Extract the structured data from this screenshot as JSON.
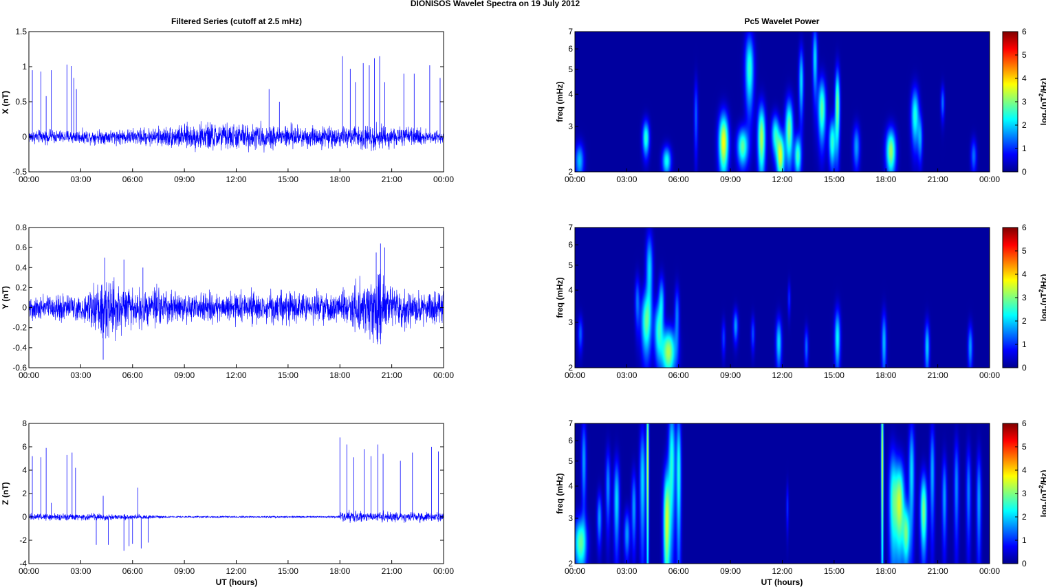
{
  "figure": {
    "title": "DIONISOS Wavelet Spectra on 19 July      2012"
  },
  "colors": {
    "series_line": "#0000ff",
    "spectrogram_background": "#00008f",
    "colormap": [
      "#00008f",
      "#0000ff",
      "#007fff",
      "#00ffff",
      "#7fff7f",
      "#ffff00",
      "#ff7f00",
      "#ff0000",
      "#7f0000"
    ]
  },
  "chart_data": [
    {
      "type": "line",
      "panel": "filtered-x",
      "title": "Filtered Series (cutoff at 2.5 mHz)",
      "xlabel": "",
      "ylabel": "X (nT)",
      "xlim": [
        "00:00",
        "00:00"
      ],
      "xticks": [
        "00:00",
        "03:00",
        "06:00",
        "09:00",
        "12:00",
        "15:00",
        "18:00",
        "21:00",
        "00:00"
      ],
      "ylim": [
        -0.5,
        1.5
      ],
      "yticks": [
        "-0.5",
        "0",
        "0.5",
        "1",
        "1.5"
      ],
      "noise_amplitude": [
        {
          "t": 0,
          "amp": 0.1
        },
        {
          "t": 3,
          "amp": 0.1
        },
        {
          "t": 6,
          "amp": 0.12
        },
        {
          "t": 9,
          "amp": 0.18
        },
        {
          "t": 10.5,
          "amp": 0.22
        },
        {
          "t": 12,
          "amp": 0.2
        },
        {
          "t": 15,
          "amp": 0.18
        },
        {
          "t": 18,
          "amp": 0.15
        },
        {
          "t": 20,
          "amp": 0.2
        },
        {
          "t": 21,
          "amp": 0.15
        },
        {
          "t": 24,
          "amp": 0.1
        }
      ],
      "spikes": [
        {
          "t": 0.2,
          "y": 0.95
        },
        {
          "t": 0.7,
          "y": 0.93
        },
        {
          "t": 1.0,
          "y": 0.58
        },
        {
          "t": 1.3,
          "y": 0.95
        },
        {
          "t": 2.2,
          "y": 1.03
        },
        {
          "t": 2.45,
          "y": 1.01
        },
        {
          "t": 2.6,
          "y": 0.84
        },
        {
          "t": 2.75,
          "y": 0.68
        },
        {
          "t": 13.9,
          "y": 0.68
        },
        {
          "t": 14.5,
          "y": 0.5
        },
        {
          "t": 18.15,
          "y": 1.15
        },
        {
          "t": 18.6,
          "y": 0.97
        },
        {
          "t": 18.9,
          "y": 0.78
        },
        {
          "t": 19.35,
          "y": 1.05
        },
        {
          "t": 19.7,
          "y": 1.02
        },
        {
          "t": 20.0,
          "y": 1.12
        },
        {
          "t": 20.3,
          "y": 1.15
        },
        {
          "t": 20.6,
          "y": 0.78
        },
        {
          "t": 21.7,
          "y": 0.9
        },
        {
          "t": 22.3,
          "y": 0.9
        },
        {
          "t": 23.2,
          "y": 1.02
        },
        {
          "t": 23.8,
          "y": 0.84
        }
      ]
    },
    {
      "type": "line",
      "panel": "filtered-y",
      "title": "",
      "xlabel": "",
      "ylabel": "Y (nT)",
      "xlim": [
        "00:00",
        "00:00"
      ],
      "xticks": [
        "00:00",
        "03:00",
        "06:00",
        "09:00",
        "12:00",
        "15:00",
        "18:00",
        "21:00",
        "00:00"
      ],
      "ylim": [
        -0.6,
        0.8
      ],
      "yticks": [
        "-0.6",
        "-0.4",
        "-0.2",
        "0",
        "0.2",
        "0.4",
        "0.6",
        "0.8"
      ],
      "noise_amplitude": [
        {
          "t": 0,
          "amp": 0.13
        },
        {
          "t": 3,
          "amp": 0.14
        },
        {
          "t": 4.2,
          "amp": 0.32
        },
        {
          "t": 5,
          "amp": 0.26
        },
        {
          "t": 6,
          "amp": 0.22
        },
        {
          "t": 9,
          "amp": 0.16
        },
        {
          "t": 12,
          "amp": 0.16
        },
        {
          "t": 15,
          "amp": 0.17
        },
        {
          "t": 18,
          "amp": 0.15
        },
        {
          "t": 20.2,
          "amp": 0.38
        },
        {
          "t": 21,
          "amp": 0.2
        },
        {
          "t": 24,
          "amp": 0.17
        }
      ],
      "spikes": [
        {
          "t": 4.3,
          "y": -0.52
        },
        {
          "t": 4.4,
          "y": 0.5
        },
        {
          "t": 5.5,
          "y": 0.48
        },
        {
          "t": 6.6,
          "y": 0.4
        },
        {
          "t": 20.1,
          "y": 0.55
        },
        {
          "t": 20.35,
          "y": 0.64
        },
        {
          "t": 20.6,
          "y": 0.6
        }
      ]
    },
    {
      "type": "line",
      "panel": "filtered-z",
      "title": "",
      "xlabel": "UT (hours)",
      "ylabel": "Z (nT)",
      "xlim": [
        "00:00",
        "00:00"
      ],
      "xticks": [
        "00:00",
        "03:00",
        "06:00",
        "09:00",
        "12:00",
        "15:00",
        "18:00",
        "21:00",
        "00:00"
      ],
      "ylim": [
        -4,
        8
      ],
      "yticks": [
        "-4",
        "-2",
        "0",
        "2",
        "4",
        "6",
        "8"
      ],
      "noise_amplitude": [
        {
          "t": 0,
          "amp": 0.3
        },
        {
          "t": 4,
          "amp": 0.3
        },
        {
          "t": 7,
          "amp": 0.2
        },
        {
          "t": 8,
          "amp": 0.08
        },
        {
          "t": 17.9,
          "amp": 0.08
        },
        {
          "t": 18.1,
          "amp": 0.5
        },
        {
          "t": 21,
          "amp": 0.45
        },
        {
          "t": 24,
          "amp": 0.4
        }
      ],
      "spikes": [
        {
          "t": 0.2,
          "y": 5.2
        },
        {
          "t": 0.7,
          "y": 5.1
        },
        {
          "t": 1.0,
          "y": 5.9
        },
        {
          "t": 1.3,
          "y": 1.2
        },
        {
          "t": 2.2,
          "y": 5.3
        },
        {
          "t": 2.5,
          "y": 5.5
        },
        {
          "t": 2.7,
          "y": 4.2
        },
        {
          "t": 3.9,
          "y": -2.4
        },
        {
          "t": 4.3,
          "y": 1.8
        },
        {
          "t": 4.6,
          "y": -2.4
        },
        {
          "t": 5.5,
          "y": -2.9
        },
        {
          "t": 5.8,
          "y": -2.5
        },
        {
          "t": 6.0,
          "y": -2.3
        },
        {
          "t": 6.3,
          "y": 2.5
        },
        {
          "t": 6.5,
          "y": -2.7
        },
        {
          "t": 6.9,
          "y": -2.2
        },
        {
          "t": 18.0,
          "y": 6.8
        },
        {
          "t": 18.4,
          "y": 6.2
        },
        {
          "t": 18.8,
          "y": 5.1
        },
        {
          "t": 19.4,
          "y": 5.8
        },
        {
          "t": 19.8,
          "y": 5.2
        },
        {
          "t": 20.2,
          "y": 6.2
        },
        {
          "t": 20.5,
          "y": 5.4
        },
        {
          "t": 21.5,
          "y": 4.8
        },
        {
          "t": 22.2,
          "y": 5.5
        },
        {
          "t": 23.3,
          "y": 6.0
        },
        {
          "t": 23.7,
          "y": 5.6
        }
      ]
    },
    {
      "type": "heatmap",
      "panel": "wavelet-x",
      "title": "Pc5 Wavelet Power",
      "xlabel": "",
      "ylabel": "freq (mHz)",
      "xticks": [
        "00:00",
        "03:00",
        "06:00",
        "09:00",
        "12:00",
        "15:00",
        "18:00",
        "21:00",
        "00:00"
      ],
      "ylim": [
        2,
        7
      ],
      "yscale": "log",
      "yticks": [
        "2",
        "3",
        "4",
        "5",
        "6",
        "7"
      ],
      "colorbar_label": "log2(nT2/Hz)",
      "colorbar_ticks": [
        "0",
        "1",
        "2",
        "3",
        "4",
        "5",
        "6"
      ],
      "blobs": [
        {
          "t": 0.25,
          "f": 2.2,
          "dt": 0.18,
          "df": 0.25,
          "v": 1.8
        },
        {
          "t": 4.1,
          "f": 2.7,
          "dt": 0.14,
          "df": 0.3,
          "v": 2.5
        },
        {
          "t": 5.3,
          "f": 2.2,
          "dt": 0.18,
          "df": 0.2,
          "v": 2.3
        },
        {
          "t": 7.0,
          "f": 3.3,
          "dt": 0.08,
          "df": 0.8,
          "v": 1.2
        },
        {
          "t": 8.6,
          "f": 2.6,
          "dt": 0.2,
          "df": 0.5,
          "v": 3.8
        },
        {
          "t": 9.7,
          "f": 2.5,
          "dt": 0.22,
          "df": 0.3,
          "v": 2.8
        },
        {
          "t": 10.1,
          "f": 5.0,
          "dt": 0.18,
          "df": 1.2,
          "v": 2.5
        },
        {
          "t": 10.8,
          "f": 2.7,
          "dt": 0.16,
          "df": 0.6,
          "v": 3.3
        },
        {
          "t": 11.6,
          "f": 2.8,
          "dt": 0.16,
          "df": 0.35,
          "v": 2.3
        },
        {
          "t": 11.9,
          "f": 2.3,
          "dt": 0.16,
          "df": 0.35,
          "v": 3.5
        },
        {
          "t": 12.4,
          "f": 2.9,
          "dt": 0.16,
          "df": 0.6,
          "v": 3.0
        },
        {
          "t": 12.9,
          "f": 2.3,
          "dt": 0.14,
          "df": 0.3,
          "v": 2.6
        },
        {
          "t": 13.1,
          "f": 4.5,
          "dt": 0.1,
          "df": 1.0,
          "v": 2.0
        },
        {
          "t": 13.9,
          "f": 5.5,
          "dt": 0.1,
          "df": 1.2,
          "v": 2.0
        },
        {
          "t": 14.3,
          "f": 3.5,
          "dt": 0.16,
          "df": 0.7,
          "v": 2.8
        },
        {
          "t": 14.9,
          "f": 2.6,
          "dt": 0.14,
          "df": 0.4,
          "v": 2.5
        },
        {
          "t": 15.2,
          "f": 3.6,
          "dt": 0.1,
          "df": 0.9,
          "v": 3.0
        },
        {
          "t": 16.3,
          "f": 2.5,
          "dt": 0.14,
          "df": 0.35,
          "v": 1.6
        },
        {
          "t": 18.3,
          "f": 2.4,
          "dt": 0.2,
          "df": 0.35,
          "v": 3.2
        },
        {
          "t": 19.7,
          "f": 3.3,
          "dt": 0.16,
          "df": 0.6,
          "v": 2.4
        },
        {
          "t": 20.0,
          "f": 2.7,
          "dt": 0.1,
          "df": 0.4,
          "v": 1.5
        },
        {
          "t": 21.3,
          "f": 3.7,
          "dt": 0.08,
          "df": 0.4,
          "v": 1.3
        },
        {
          "t": 23.1,
          "f": 2.3,
          "dt": 0.12,
          "df": 0.25,
          "v": 1.3
        }
      ]
    },
    {
      "type": "heatmap",
      "panel": "wavelet-y",
      "title": "",
      "xlabel": "",
      "ylabel": "freq (mHz)",
      "xticks": [
        "00:00",
        "03:00",
        "06:00",
        "09:00",
        "12:00",
        "15:00",
        "18:00",
        "21:00",
        "00:00"
      ],
      "ylim": [
        2,
        7
      ],
      "yscale": "log",
      "yticks": [
        "2",
        "3",
        "4",
        "5",
        "6",
        "7"
      ],
      "colorbar_label": "log2(nT2/Hz)",
      "colorbar_ticks": [
        "0",
        "1",
        "2",
        "3",
        "4",
        "5",
        "6"
      ],
      "blobs": [
        {
          "t": 0.3,
          "f": 2.7,
          "dt": 0.1,
          "df": 0.3,
          "v": 1.2
        },
        {
          "t": 3.6,
          "f": 3.6,
          "dt": 0.1,
          "df": 0.6,
          "v": 1.3
        },
        {
          "t": 4.1,
          "f": 3.0,
          "dt": 0.2,
          "df": 0.6,
          "v": 2.6
        },
        {
          "t": 4.3,
          "f": 4.8,
          "dt": 0.14,
          "df": 1.2,
          "v": 2.0
        },
        {
          "t": 4.8,
          "f": 2.8,
          "dt": 0.16,
          "df": 0.5,
          "v": 2.1
        },
        {
          "t": 5.4,
          "f": 2.3,
          "dt": 0.3,
          "df": 0.35,
          "v": 3.3
        },
        {
          "t": 5.0,
          "f": 3.6,
          "dt": 0.12,
          "df": 0.6,
          "v": 1.8
        },
        {
          "t": 5.9,
          "f": 3.2,
          "dt": 0.1,
          "df": 0.6,
          "v": 1.4
        },
        {
          "t": 8.6,
          "f": 2.6,
          "dt": 0.08,
          "df": 0.3,
          "v": 1.0
        },
        {
          "t": 9.3,
          "f": 2.9,
          "dt": 0.1,
          "df": 0.3,
          "v": 1.6
        },
        {
          "t": 10.3,
          "f": 2.7,
          "dt": 0.08,
          "df": 0.3,
          "v": 1.1
        },
        {
          "t": 11.8,
          "f": 2.5,
          "dt": 0.12,
          "df": 0.4,
          "v": 2.0
        },
        {
          "t": 12.4,
          "f": 3.7,
          "dt": 0.06,
          "df": 0.4,
          "v": 0.9
        },
        {
          "t": 13.4,
          "f": 2.4,
          "dt": 0.08,
          "df": 0.3,
          "v": 1.3
        },
        {
          "t": 15.2,
          "f": 2.6,
          "dt": 0.12,
          "df": 0.5,
          "v": 2.2
        },
        {
          "t": 17.9,
          "f": 2.5,
          "dt": 0.1,
          "df": 0.5,
          "v": 1.8
        },
        {
          "t": 20.4,
          "f": 2.4,
          "dt": 0.1,
          "df": 0.4,
          "v": 1.9
        },
        {
          "t": 22.9,
          "f": 2.4,
          "dt": 0.1,
          "df": 0.35,
          "v": 1.6
        }
      ]
    },
    {
      "type": "heatmap",
      "panel": "wavelet-z",
      "title": "",
      "xlabel": "UT (hours)",
      "ylabel": "freq (mHz)",
      "xticks": [
        "00:00",
        "03:00",
        "06:00",
        "09:00",
        "12:00",
        "15:00",
        "18:00",
        "21:00",
        "00:00"
      ],
      "ylim": [
        2,
        7
      ],
      "yscale": "log",
      "yticks": [
        "2",
        "3",
        "4",
        "5",
        "6",
        "7"
      ],
      "colorbar_label": "log2(nT2/Hz)",
      "colorbar_ticks": [
        "0",
        "1",
        "2",
        "3",
        "4",
        "5",
        "6"
      ],
      "blobs": [
        {
          "t": 0.3,
          "f": 2.4,
          "dt": 0.25,
          "df": 0.4,
          "v": 2.8
        },
        {
          "t": 0.5,
          "f": 5.0,
          "dt": 0.1,
          "df": 1.4,
          "v": 1.6
        },
        {
          "t": 1.4,
          "f": 3.0,
          "dt": 0.1,
          "df": 0.5,
          "v": 1.6
        },
        {
          "t": 1.9,
          "f": 4.0,
          "dt": 0.1,
          "df": 1.0,
          "v": 1.5
        },
        {
          "t": 2.4,
          "f": 3.5,
          "dt": 0.12,
          "df": 1.0,
          "v": 2.0
        },
        {
          "t": 3.0,
          "f": 2.6,
          "dt": 0.12,
          "df": 0.4,
          "v": 1.6
        },
        {
          "t": 3.4,
          "f": 3.3,
          "dt": 0.1,
          "df": 0.8,
          "v": 1.6
        },
        {
          "t": 3.9,
          "f": 4.2,
          "dt": 0.12,
          "df": 1.6,
          "v": 2.0
        },
        {
          "t": 4.2,
          "f": 5.0,
          "dt": 0.05,
          "df": 3.0,
          "v": 3.5
        },
        {
          "t": 5.3,
          "f": 2.9,
          "dt": 0.14,
          "df": 1.1,
          "v": 3.4
        },
        {
          "t": 5.6,
          "f": 5.0,
          "dt": 0.14,
          "df": 2.0,
          "v": 2.4
        },
        {
          "t": 6.0,
          "f": 4.5,
          "dt": 0.1,
          "df": 2.0,
          "v": 2.4
        },
        {
          "t": 12.3,
          "f": 3.3,
          "dt": 0.05,
          "df": 0.5,
          "v": 0.9
        },
        {
          "t": 17.8,
          "f": 5.0,
          "dt": 0.05,
          "df": 3.0,
          "v": 3.6
        },
        {
          "t": 18.4,
          "f": 3.5,
          "dt": 0.16,
          "df": 1.3,
          "v": 2.2
        },
        {
          "t": 18.8,
          "f": 3.4,
          "dt": 0.2,
          "df": 1.0,
          "v": 3.4
        },
        {
          "t": 19.2,
          "f": 2.6,
          "dt": 0.14,
          "df": 0.5,
          "v": 2.6
        },
        {
          "t": 19.5,
          "f": 4.5,
          "dt": 0.12,
          "df": 1.6,
          "v": 2.0
        },
        {
          "t": 20.2,
          "f": 3.2,
          "dt": 0.14,
          "df": 0.8,
          "v": 3.0
        },
        {
          "t": 20.7,
          "f": 4.5,
          "dt": 0.1,
          "df": 1.5,
          "v": 1.7
        },
        {
          "t": 21.4,
          "f": 3.6,
          "dt": 0.1,
          "df": 1.0,
          "v": 1.6
        },
        {
          "t": 22.1,
          "f": 4.0,
          "dt": 0.1,
          "df": 1.3,
          "v": 1.5
        },
        {
          "t": 22.8,
          "f": 3.8,
          "dt": 0.1,
          "df": 1.2,
          "v": 1.4
        },
        {
          "t": 23.4,
          "f": 3.5,
          "dt": 0.1,
          "df": 1.2,
          "v": 1.6
        }
      ]
    }
  ]
}
